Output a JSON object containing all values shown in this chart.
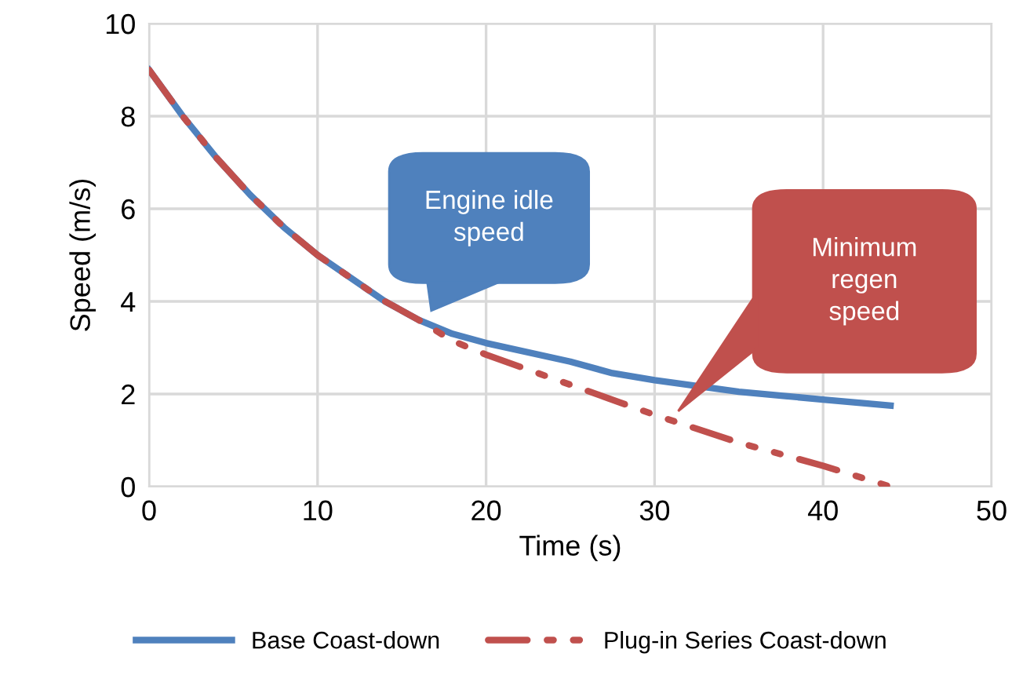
{
  "chart_data": {
    "type": "line",
    "xlabel": "Time (s)",
    "ylabel": "Speed (m/s)",
    "xlim": [
      0,
      50
    ],
    "xticks": [
      0,
      10,
      20,
      30,
      40,
      50
    ],
    "ylim": [
      0,
      10
    ],
    "yticks": [
      0,
      2,
      4,
      6,
      8,
      10
    ],
    "grid": true,
    "legend": "bottom",
    "marker": "none",
    "series": [
      {
        "name": "Base Coast-down",
        "color": "#4f81bd",
        "line_style": "solid",
        "x": [
          0,
          2,
          4,
          6,
          8,
          10,
          12,
          14,
          16,
          18,
          20,
          25,
          27.5,
          30,
          35,
          40,
          44
        ],
        "values": [
          9,
          8.0,
          7.1,
          6.3,
          5.6,
          5.0,
          4.5,
          4.0,
          3.6,
          3.3,
          3.1,
          2.7,
          2.45,
          2.3,
          2.05,
          1.88,
          1.75
        ]
      },
      {
        "name": "Plug-in Series Coast-down",
        "color": "#c0504d",
        "line_style": "dashed",
        "x": [
          0,
          2,
          4,
          6,
          8,
          10,
          12,
          14,
          16,
          18,
          20,
          25,
          30,
          35,
          40,
          44
        ],
        "values": [
          9,
          8.0,
          7.1,
          6.3,
          5.6,
          5.0,
          4.5,
          4.0,
          3.6,
          3.15,
          2.85,
          2.2,
          1.55,
          0.95,
          0.45,
          0
        ]
      }
    ],
    "annotations": [
      "Engine idle\nspeed",
      "Minimum\nregen\nspeed"
    ]
  }
}
